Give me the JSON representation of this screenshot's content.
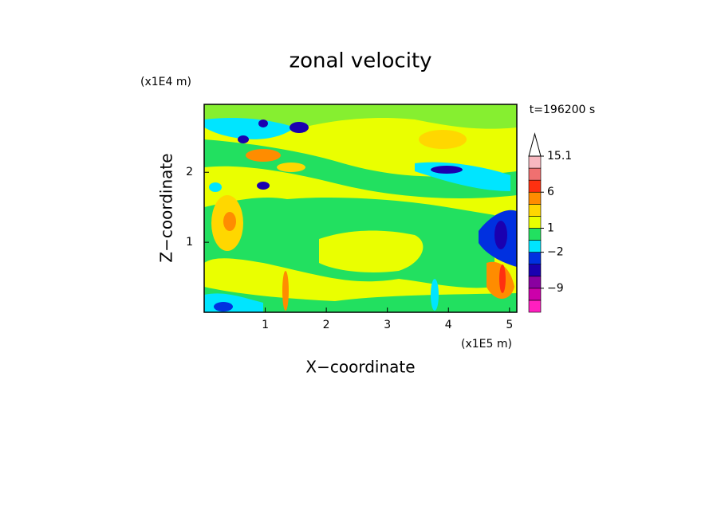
{
  "chart_data": {
    "type": "contour",
    "title": "zonal velocity",
    "xlabel": "X−coordinate",
    "ylabel": "Z−coordinate",
    "x_unit": "(x1E5 m)",
    "y_unit": "(x1E4 m)",
    "annotation": "t=196200 s",
    "xlim": [
      0,
      5.12
    ],
    "ylim": [
      0,
      2.97
    ],
    "xticks": [
      1,
      2,
      3,
      4,
      5
    ],
    "yticks": [
      1,
      2
    ],
    "colorbar": {
      "levels": [
        -15,
        -12,
        -9,
        -6,
        -4,
        -2,
        -1,
        1,
        2,
        4,
        6,
        9,
        12,
        15.1
      ],
      "colors": [
        "#ff1fbf",
        "#cc00aa",
        "#8a00a0",
        "#1a00b0",
        "#0030e0",
        "#00e5ff",
        "#22e060",
        "#eaff00",
        "#ffd700",
        "#ff8c00",
        "#ff3010",
        "#f07070",
        "#f8b8c0"
      ],
      "extend": "max",
      "ticks": [
        {
          "value": -9,
          "label": "−9"
        },
        {
          "value": -2,
          "label": "−2"
        },
        1,
        6,
        15.1
      ]
    }
  }
}
